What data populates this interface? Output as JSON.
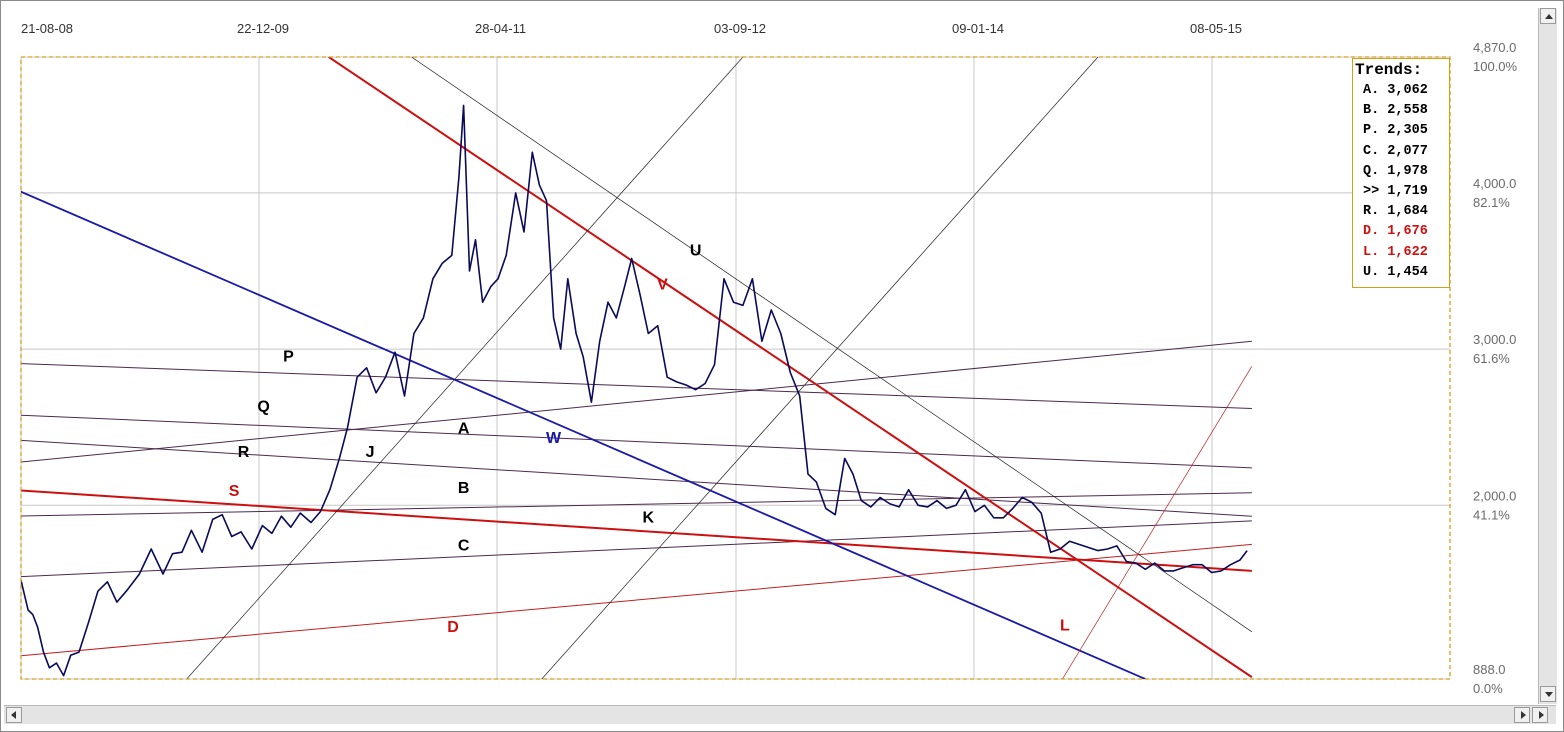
{
  "chart_data": {
    "type": "line",
    "title": "",
    "x_labels": [
      "21-08-08",
      "22-12-09",
      "28-04-11",
      "03-09-12",
      "09-01-14",
      "08-05-15"
    ],
    "y_ticks": [
      {
        "value": "4,870.0",
        "pct": "100.0%"
      },
      {
        "value": "4,000.0",
        "pct": "82.1%"
      },
      {
        "value": "3,000.0",
        "pct": "61.6%"
      },
      {
        "value": "2,000.0",
        "pct": "41.1%"
      },
      {
        "value": "888.0",
        "pct": "0.0%"
      }
    ],
    "ylim": [
      888,
      4870
    ],
    "grid": true,
    "price_series": {
      "color": "#0a0a5a",
      "points": [
        [
          0,
          1520
        ],
        [
          0.6,
          1330
        ],
        [
          1.0,
          1300
        ],
        [
          1.4,
          1220
        ],
        [
          1.9,
          1060
        ],
        [
          2.4,
          960
        ],
        [
          3.0,
          990
        ],
        [
          3.6,
          910
        ],
        [
          4.2,
          1040
        ],
        [
          4.9,
          1060
        ],
        [
          5.7,
          1250
        ],
        [
          6.5,
          1450
        ],
        [
          7.3,
          1510
        ],
        [
          8.1,
          1380
        ],
        [
          9.0,
          1460
        ],
        [
          10.0,
          1560
        ],
        [
          11.0,
          1720
        ],
        [
          12.0,
          1560
        ],
        [
          12.8,
          1690
        ],
        [
          13.6,
          1700
        ],
        [
          14.4,
          1840
        ],
        [
          15.3,
          1700
        ],
        [
          16.2,
          1910
        ],
        [
          17.0,
          1940
        ],
        [
          17.8,
          1800
        ],
        [
          18.6,
          1830
        ],
        [
          19.5,
          1720
        ],
        [
          20.4,
          1870
        ],
        [
          21.2,
          1820
        ],
        [
          22.0,
          1930
        ],
        [
          22.8,
          1860
        ],
        [
          23.6,
          1950
        ],
        [
          24.5,
          1890
        ],
        [
          25.3,
          1960
        ],
        [
          26.1,
          2100
        ],
        [
          26.9,
          2300
        ],
        [
          27.6,
          2500
        ],
        [
          28.4,
          2820
        ],
        [
          29.2,
          2880
        ],
        [
          30.0,
          2720
        ],
        [
          30.8,
          2820
        ],
        [
          31.6,
          2980
        ],
        [
          32.4,
          2700
        ],
        [
          33.2,
          3100
        ],
        [
          34.0,
          3200
        ],
        [
          34.8,
          3450
        ],
        [
          35.6,
          3550
        ],
        [
          36.4,
          3600
        ],
        [
          37.0,
          4100
        ],
        [
          37.4,
          4560
        ],
        [
          37.9,
          3500
        ],
        [
          38.4,
          3700
        ],
        [
          39.0,
          3300
        ],
        [
          39.7,
          3400
        ],
        [
          40.3,
          3450
        ],
        [
          41.0,
          3600
        ],
        [
          41.8,
          4000
        ],
        [
          42.5,
          3750
        ],
        [
          43.2,
          4260
        ],
        [
          43.8,
          4050
        ],
        [
          44.4,
          3950
        ],
        [
          45.0,
          3200
        ],
        [
          45.6,
          3000
        ],
        [
          46.2,
          3450
        ],
        [
          46.9,
          3100
        ],
        [
          47.5,
          2950
        ],
        [
          48.2,
          2660
        ],
        [
          48.9,
          3050
        ],
        [
          49.6,
          3300
        ],
        [
          50.3,
          3200
        ],
        [
          51.0,
          3400
        ],
        [
          51.6,
          3580
        ],
        [
          52.3,
          3350
        ],
        [
          53.0,
          3100
        ],
        [
          53.8,
          3150
        ],
        [
          54.6,
          2820
        ],
        [
          55.4,
          2790
        ],
        [
          56.2,
          2770
        ],
        [
          57.0,
          2740
        ],
        [
          57.8,
          2780
        ],
        [
          58.6,
          2900
        ],
        [
          59.4,
          3450
        ],
        [
          60.2,
          3300
        ],
        [
          61.0,
          3280
        ],
        [
          61.8,
          3450
        ],
        [
          62.6,
          3050
        ],
        [
          63.4,
          3250
        ],
        [
          64.2,
          3100
        ],
        [
          65.0,
          2850
        ],
        [
          65.8,
          2700
        ],
        [
          66.5,
          2200
        ],
        [
          67.2,
          2150
        ],
        [
          68.0,
          1980
        ],
        [
          68.8,
          1940
        ],
        [
          69.6,
          2300
        ],
        [
          70.3,
          2200
        ],
        [
          71.0,
          2030
        ],
        [
          71.8,
          1990
        ],
        [
          72.6,
          2050
        ],
        [
          73.4,
          2010
        ],
        [
          74.2,
          1990
        ],
        [
          75.0,
          2100
        ],
        [
          75.8,
          2000
        ],
        [
          76.6,
          1990
        ],
        [
          77.4,
          2030
        ],
        [
          78.2,
          1980
        ],
        [
          79.0,
          2000
        ],
        [
          79.8,
          2100
        ],
        [
          80.6,
          1960
        ],
        [
          81.4,
          2000
        ],
        [
          82.2,
          1920
        ],
        [
          83.0,
          1920
        ],
        [
          83.8,
          1980
        ],
        [
          84.6,
          2050
        ],
        [
          85.4,
          2020
        ],
        [
          86.2,
          1950
        ],
        [
          87.0,
          1700
        ],
        [
          87.8,
          1720
        ],
        [
          88.6,
          1770
        ],
        [
          89.4,
          1750
        ],
        [
          90.2,
          1730
        ],
        [
          91.0,
          1710
        ],
        [
          91.8,
          1720
        ],
        [
          92.6,
          1740
        ],
        [
          93.4,
          1640
        ],
        [
          94.2,
          1630
        ],
        [
          95.0,
          1590
        ],
        [
          95.8,
          1630
        ],
        [
          96.6,
          1580
        ],
        [
          97.4,
          1580
        ],
        [
          98.2,
          1600
        ],
        [
          99.0,
          1620
        ],
        [
          99.8,
          1620
        ],
        [
          100.6,
          1570
        ],
        [
          101.4,
          1580
        ],
        [
          102.2,
          1620
        ],
        [
          103.0,
          1650
        ],
        [
          103.6,
          1710
        ]
      ]
    },
    "trend_lines": [
      {
        "id": "A",
        "color": "#4b2a4b",
        "width": 1,
        "x0": -1,
        "y0": 2910,
        "x1": 104,
        "y1": 2620
      },
      {
        "id": "B",
        "color": "#4b2a4b",
        "width": 1,
        "x0": -1,
        "y0": 2580,
        "x1": 104,
        "y1": 2240
      },
      {
        "id": "P",
        "color": "#4b2a4b",
        "width": 1,
        "x0": -1,
        "y0": 2270,
        "x1": 104,
        "y1": 3050
      },
      {
        "id": "Q",
        "color": "#4b2a4b",
        "width": 1,
        "x0": -1,
        "y0": 2420,
        "x1": 104,
        "y1": 1930
      },
      {
        "id": "R",
        "color": "#4b2a4b",
        "width": 1,
        "x0": -1,
        "y0": 1930,
        "x1": 104,
        "y1": 2080
      },
      {
        "id": "C",
        "color": "#4b2a4b",
        "width": 1,
        "x0": -1,
        "y0": 1540,
        "x1": 104,
        "y1": 1900
      },
      {
        "id": "D",
        "color": "#c02020",
        "width": 1,
        "x0": -1,
        "y0": 1030,
        "x1": 104,
        "y1": 1750
      },
      {
        "id": "S",
        "color": "#cc1010",
        "width": 2,
        "x0": -1,
        "y0": 2100,
        "x1": 104,
        "y1": 1580
      },
      {
        "id": "V",
        "color": "#cc1010",
        "width": 2,
        "x0": 26,
        "y0": 4870,
        "x1": 104,
        "y1": 900
      },
      {
        "id": "U",
        "color": "#222222",
        "width": 0.7,
        "x0": 33,
        "y0": 4870,
        "x1": 104,
        "y1": 1190
      },
      {
        "id": "W",
        "color": "#1a1aa8",
        "width": 1.8,
        "x0": -1,
        "y0": 4040,
        "x1": 95,
        "y1": 888
      },
      {
        "id": "J",
        "color": "#222222",
        "width": 0.7,
        "x0": 14,
        "y0": 888,
        "x1": 61,
        "y1": 4870
      },
      {
        "id": "K",
        "color": "#222222",
        "width": 0.7,
        "x0": 44,
        "y0": 888,
        "x1": 91,
        "y1": 4870
      },
      {
        "id": "L",
        "color": "#c02020",
        "width": 0.7,
        "x0": 88,
        "y0": 888,
        "x1": 104,
        "y1": 2890
      }
    ],
    "line_labels": [
      {
        "text": "P",
        "color": "#000000",
        "x": 22.6,
        "y": 2920
      },
      {
        "text": "Q",
        "color": "#000000",
        "x": 20.5,
        "y": 2600
      },
      {
        "text": "R",
        "color": "#000000",
        "x": 18.8,
        "y": 2310
      },
      {
        "text": "S",
        "color": "#cc1010",
        "x": 18.0,
        "y": 2060
      },
      {
        "text": "J",
        "color": "#000000",
        "x": 29.5,
        "y": 2310
      },
      {
        "text": "A",
        "color": "#000000",
        "x": 37.4,
        "y": 2460
      },
      {
        "text": "W",
        "color": "#1a1aa8",
        "x": 45.0,
        "y": 2400
      },
      {
        "text": "B",
        "color": "#000000",
        "x": 37.4,
        "y": 2080
      },
      {
        "text": "C",
        "color": "#000000",
        "x": 37.4,
        "y": 1710
      },
      {
        "text": "D",
        "color": "#cc1010",
        "x": 36.5,
        "y": 1190
      },
      {
        "text": "K",
        "color": "#000000",
        "x": 53.0,
        "y": 1890
      },
      {
        "text": "V",
        "color": "#cc1010",
        "x": 54.2,
        "y": 3380
      },
      {
        "text": "U",
        "color": "#000000",
        "x": 57.0,
        "y": 3600
      },
      {
        "text": "L",
        "color": "#cc1010",
        "x": 88.2,
        "y": 1200
      }
    ],
    "legend": {
      "title": "Trends:",
      "placement": "top-right",
      "entries": [
        {
          "label": "A. 3,062",
          "color": "#000000"
        },
        {
          "label": "B. 2,558",
          "color": "#000000"
        },
        {
          "label": "P. 2,305",
          "color": "#000000"
        },
        {
          "label": "C. 2,077",
          "color": "#000000"
        },
        {
          "label": "Q. 1,978",
          "color": "#000000"
        },
        {
          "label": ">> 1,719",
          "color": "#000000"
        },
        {
          "label": "R. 1,684",
          "color": "#000000"
        },
        {
          "label": "D. 1,676",
          "color": "#cc1010"
        },
        {
          "label": "L. 1,622",
          "color": "#cc1010"
        },
        {
          "label": "U. 1,454",
          "color": "#000000"
        }
      ]
    }
  }
}
